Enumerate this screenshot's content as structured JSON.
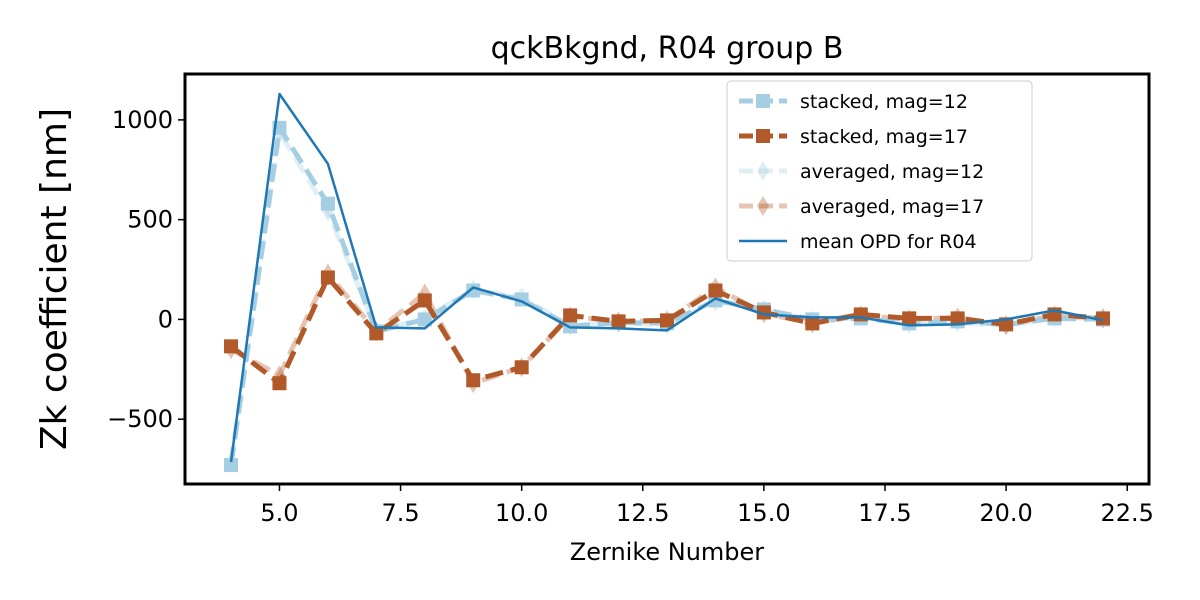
{
  "chart_data": {
    "type": "line",
    "title": "qckBkgnd, R04 group B",
    "xlabel": "Zernike Number",
    "ylabel": "Zk coefficient [nm]",
    "xlim": [
      3.05,
      22.95
    ],
    "ylim": [
      -825,
      1230
    ],
    "xticks": [
      5.0,
      7.5,
      10.0,
      12.5,
      15.0,
      17.5,
      20.0,
      22.5
    ],
    "xtick_labels": [
      "5.0",
      "7.5",
      "10.0",
      "12.5",
      "15.0",
      "17.5",
      "20.0",
      "22.5"
    ],
    "yticks": [
      -500,
      0,
      500,
      1000
    ],
    "ytick_labels": [
      "−500",
      "0",
      "500",
      "1000"
    ],
    "grid": false,
    "legend_position": "top-right",
    "x": [
      4,
      5,
      6,
      7,
      8,
      9,
      10,
      11,
      12,
      13,
      14,
      15,
      16,
      17,
      18,
      19,
      20,
      21,
      22
    ],
    "series": [
      {
        "name": "averaged, mag=12",
        "color": "#a6cee3",
        "opacity": 0.35,
        "marker": "diamond",
        "dash": true,
        "width": 5,
        "values": [
          -720,
          940,
          540,
          -55,
          5,
          150,
          110,
          -30,
          -20,
          -25,
          90,
          50,
          -5,
          10,
          -25,
          -15,
          -30,
          10,
          5
        ]
      },
      {
        "name": "averaged, mag=17",
        "color": "#b15928",
        "opacity": 0.35,
        "marker": "diamond",
        "dash": true,
        "width": 5,
        "values": [
          -150,
          -280,
          230,
          -60,
          130,
          -320,
          -240,
          15,
          -10,
          -5,
          160,
          30,
          -20,
          20,
          0,
          10,
          -30,
          20,
          5
        ]
      },
      {
        "name": "stacked, mag=12",
        "color": "#a6cee3",
        "opacity": 1,
        "marker": "square",
        "dash": true,
        "width": 5,
        "values": [
          -730,
          960,
          580,
          -60,
          0,
          145,
          100,
          -35,
          -15,
          -20,
          95,
          50,
          0,
          5,
          -20,
          -10,
          -25,
          5,
          0
        ]
      },
      {
        "name": "stacked, mag=17",
        "color": "#b15928",
        "opacity": 1,
        "marker": "square",
        "dash": true,
        "width": 5,
        "values": [
          -135,
          -320,
          210,
          -70,
          95,
          -305,
          -240,
          20,
          -10,
          -5,
          145,
          35,
          -20,
          25,
          5,
          5,
          -25,
          25,
          5
        ]
      },
      {
        "name": "mean OPD for R04",
        "color": "#1f78b4",
        "opacity": 1,
        "marker": "none",
        "dash": false,
        "width": 2.5,
        "values": [
          -715,
          1130,
          780,
          -40,
          -45,
          160,
          90,
          -40,
          -45,
          -55,
          105,
          25,
          10,
          10,
          -30,
          -25,
          0,
          45,
          -5
        ]
      }
    ],
    "legend_order": [
      "stacked, mag=12",
      "stacked, mag=17",
      "averaged, mag=12",
      "averaged, mag=17",
      "mean OPD for R04"
    ]
  }
}
